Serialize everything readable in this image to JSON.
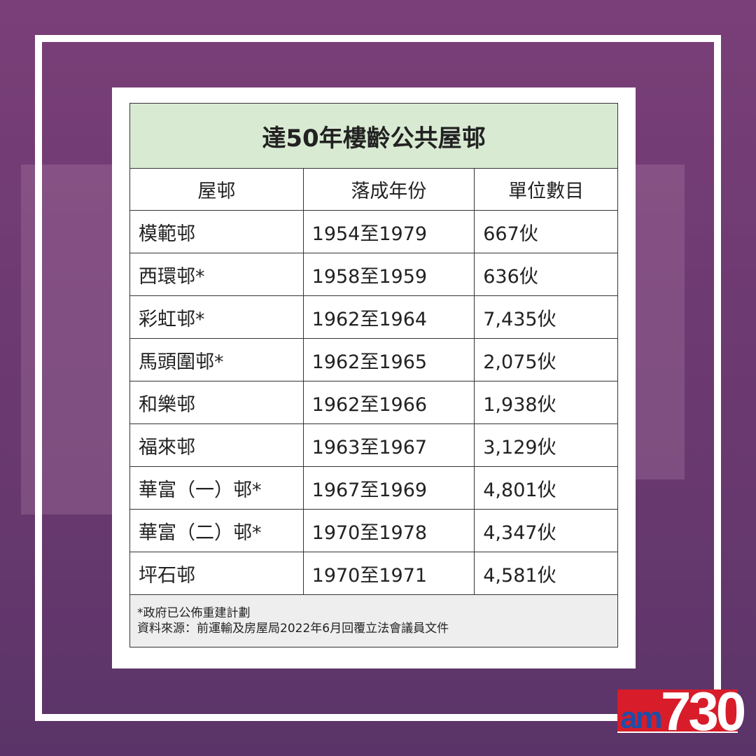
{
  "title": "達50年樓齡公共屋邨",
  "headers": [
    "屋邨",
    "落成年份",
    "單位數目"
  ],
  "rows": [
    [
      "模範邨",
      "1954至1979",
      "667伙"
    ],
    [
      "西環邨*",
      "1958至1959",
      "636伙"
    ],
    [
      "彩虹邨*",
      "1962至1964",
      "7,435伙"
    ],
    [
      "馬頭圍邨*",
      "1962至1965",
      "2,075伙"
    ],
    [
      "和樂邨",
      "1962至1966",
      "1,938伙"
    ],
    [
      "福來邨",
      "1963至1967",
      "3,129伙"
    ],
    [
      "華富（一）邨*",
      "1967至1969",
      "4,801伙"
    ],
    [
      "華富（二）邨*",
      "1970至1978",
      "4,347伙"
    ],
    [
      "坪石邨",
      "1970至1971",
      "4,581伙"
    ]
  ],
  "footnote": "*政府已公佈重建計劃",
  "source": "資料來源：前運輸及房屋局2022年6月回覆立法會議員文件",
  "logo": {
    "text": "am730",
    "colors": {
      "red": "#d81c2a",
      "blue": "#1d4fa8"
    }
  },
  "colors": {
    "background": "#6e3a72",
    "title_bg": "#d9ead3",
    "footer_bg": "#eeeeee"
  }
}
